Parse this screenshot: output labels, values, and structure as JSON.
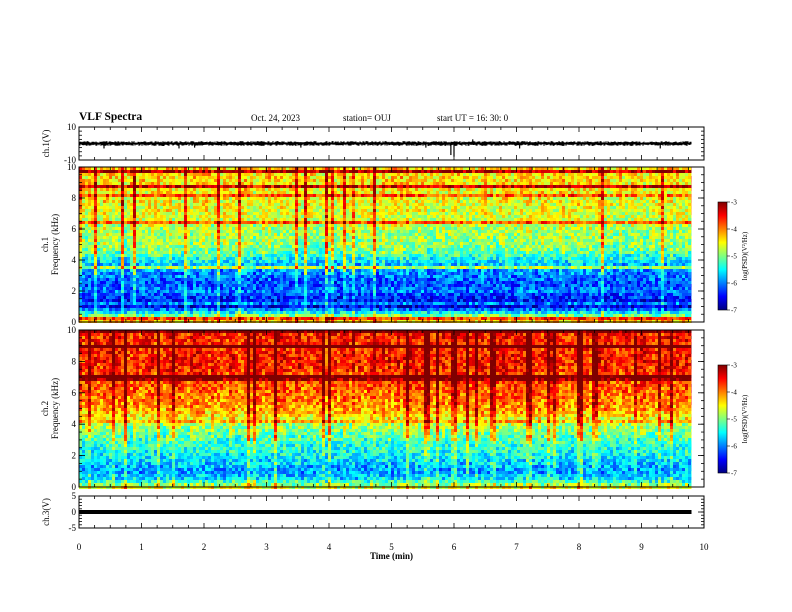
{
  "header": {
    "title": "VLF Spectra",
    "date": "Oct. 24, 2023",
    "station": "station= OUJ",
    "start": "start UT =  16: 30: 0"
  },
  "colors": {
    "colormap": [
      "#00007f",
      "#0000ff",
      "#007fff",
      "#00ffff",
      "#7fff7f",
      "#ffff00",
      "#ff7f00",
      "#ff0000",
      "#7f0000"
    ],
    "trace": "#000000",
    "background": "#ffffff"
  },
  "chart_data": [
    {
      "type": "line",
      "panel": "ch1-waveform",
      "ylabel": "ch.1(V)",
      "ylim": [
        -10,
        10
      ],
      "yticks": [
        "10",
        "-10"
      ],
      "x_unit": "min",
      "xlim": [
        0,
        10
      ],
      "data_extent_x": [
        0,
        9.8
      ],
      "baseline_v": 0,
      "typical_amplitude_v": 1,
      "spikes": [
        {
          "x": 0.4,
          "y": -3
        },
        {
          "x": 1.6,
          "y": -3
        },
        {
          "x": 1.85,
          "y": -2.5
        },
        {
          "x": 3.55,
          "y": -2.5
        },
        {
          "x": 5.55,
          "y": -2.5
        },
        {
          "x": 5.95,
          "y": -7
        },
        {
          "x": 6.0,
          "y": -8
        },
        {
          "x": 6.3,
          "y": 2.5
        },
        {
          "x": 7.05,
          "y": -3
        },
        {
          "x": 9.3,
          "y": -3
        }
      ]
    },
    {
      "type": "heatmap",
      "panel": "ch1-spectrogram",
      "ylabel": "ch.1\nFrequency (kHz)",
      "ylim": [
        0,
        10
      ],
      "yticks": [
        "0",
        "2",
        "4",
        "6",
        "8",
        "10"
      ],
      "xlim": [
        0,
        10
      ],
      "data_extent_x": [
        0,
        9.8
      ],
      "colorbar": {
        "label": "log(PSD)(V²/Hz)",
        "range": [
          -7,
          -3
        ],
        "ticks": [
          "-3",
          "-4",
          "-5",
          "-6",
          "-7"
        ]
      },
      "levels_by_frequency_khz": [
        {
          "f": 0,
          "level": -4.2
        },
        {
          "f": 0.5,
          "level": -5.2
        },
        {
          "f": 1,
          "level": -6.6
        },
        {
          "f": 1.5,
          "level": -6.4
        },
        {
          "f": 2,
          "level": -6.0
        },
        {
          "f": 2.5,
          "level": -6.2
        },
        {
          "f": 3,
          "level": -6.0
        },
        {
          "f": 3.5,
          "level": -5.8
        },
        {
          "f": 4,
          "level": -5.5
        },
        {
          "f": 4.5,
          "level": -5.1
        },
        {
          "f": 5,
          "level": -4.9
        },
        {
          "f": 6,
          "level": -4.8
        },
        {
          "f": 7,
          "level": -4.6
        },
        {
          "f": 8,
          "level": -4.5
        },
        {
          "f": 9,
          "level": -4.4
        },
        {
          "f": 10,
          "level": -4.3
        }
      ]
    },
    {
      "type": "heatmap",
      "panel": "ch2-spectrogram",
      "ylabel": "ch.2\nFrequency (kHz)",
      "ylim": [
        0,
        10
      ],
      "yticks": [
        "0",
        "2",
        "4",
        "6",
        "8",
        "10"
      ],
      "xlim": [
        0,
        10
      ],
      "data_extent_x": [
        0,
        9.8
      ],
      "colorbar": {
        "label": "log(PSD)(V²/Hz)",
        "range": [
          -7,
          -3
        ],
        "ticks": [
          "-3",
          "-4",
          "-5",
          "-6",
          "-7"
        ]
      },
      "levels_by_frequency_khz": [
        {
          "f": 0,
          "level": -4.6
        },
        {
          "f": 0.5,
          "level": -5.6
        },
        {
          "f": 1,
          "level": -5.9
        },
        {
          "f": 1.5,
          "level": -5.7
        },
        {
          "f": 2,
          "level": -5.5
        },
        {
          "f": 2.5,
          "level": -5.4
        },
        {
          "f": 3,
          "level": -5.2
        },
        {
          "f": 3.5,
          "level": -5.0
        },
        {
          "f": 4,
          "level": -4.8
        },
        {
          "f": 4.5,
          "level": -4.4
        },
        {
          "f": 5,
          "level": -4.1
        },
        {
          "f": 6,
          "level": -3.9
        },
        {
          "f": 7,
          "level": -3.7
        },
        {
          "f": 8,
          "level": -3.6
        },
        {
          "f": 9,
          "level": -3.6
        },
        {
          "f": 10,
          "level": -3.6
        }
      ]
    },
    {
      "type": "line",
      "panel": "ch3-waveform",
      "ylabel": "ch.3(V)",
      "ylim": [
        -5,
        5
      ],
      "yticks": [
        "5",
        "0",
        "-5"
      ],
      "xlim": [
        0,
        10
      ],
      "data_extent_x": [
        0,
        9.8
      ],
      "constant_value_v": 0,
      "xlabel": "Time (min)",
      "xticks": [
        "0",
        "1",
        "2",
        "3",
        "4",
        "5",
        "6",
        "7",
        "8",
        "9",
        "10"
      ]
    }
  ]
}
